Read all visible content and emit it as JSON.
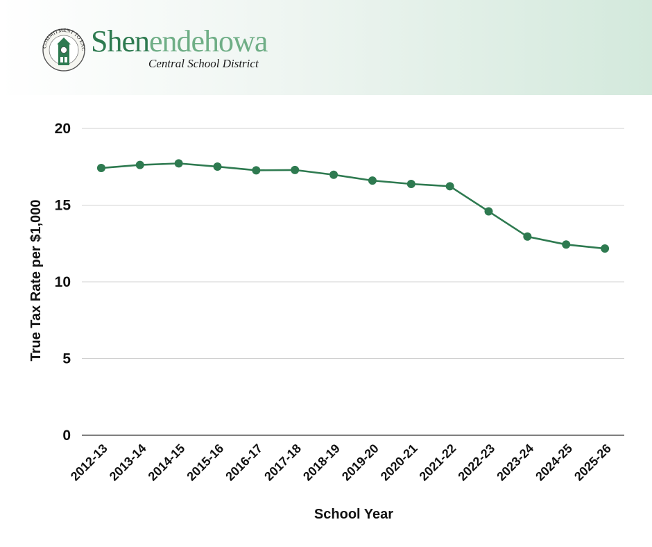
{
  "header": {
    "logo_text": "COMMITMENT TO EXCELLENCE",
    "brand_name_dark": "Shen",
    "brand_name_light": "endehowa",
    "brand_subtitle": "Central School District"
  },
  "colors": {
    "series": "#2e7a50",
    "grid": "#d0d0d0",
    "axis": "#333333",
    "header_gradient_end": "#d3e9dc"
  },
  "chart_data": {
    "type": "line",
    "xlabel": "School Year",
    "ylabel": "True Tax Rate per $1,000",
    "ylim": [
      0,
      20
    ],
    "yticks": [
      0,
      5,
      10,
      15,
      20
    ],
    "grid": true,
    "categories": [
      "2012-13",
      "2013-14",
      "2014-15",
      "2015-16",
      "2016-17",
      "2017-18",
      "2018-19",
      "2019-20",
      "2020-21",
      "2021-22",
      "2022-23",
      "2023-24",
      "2024-25",
      "2025-26"
    ],
    "series": [
      {
        "values": [
          17.42,
          17.62,
          17.72,
          17.51,
          17.27,
          17.29,
          16.98,
          16.6,
          16.38,
          16.23,
          14.59,
          12.95,
          12.43,
          12.17
        ]
      }
    ]
  }
}
